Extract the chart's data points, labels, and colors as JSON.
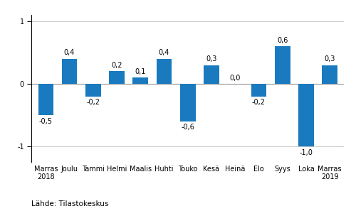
{
  "categories": [
    "Marras\n2018",
    "Joulu",
    "Tammi",
    "Helmi",
    "Maalis",
    "Huhti",
    "Touko",
    "Kesä",
    "Heinä",
    "Elo",
    "Syys",
    "Loka",
    "Marras\n2019"
  ],
  "values": [
    -0.5,
    0.4,
    -0.2,
    0.2,
    0.1,
    0.4,
    -0.6,
    0.3,
    0.0,
    -0.2,
    0.6,
    -1.0,
    0.3
  ],
  "bar_color": "#1a7abf",
  "ylim": [
    -1.25,
    1.1
  ],
  "yticks": [
    -1,
    0,
    1
  ],
  "footer": "Lähde: Tilastokeskus",
  "background_color": "#ffffff",
  "label_fontsize": 7,
  "tick_fontsize": 7,
  "footer_fontsize": 7.5,
  "bar_width": 0.65
}
